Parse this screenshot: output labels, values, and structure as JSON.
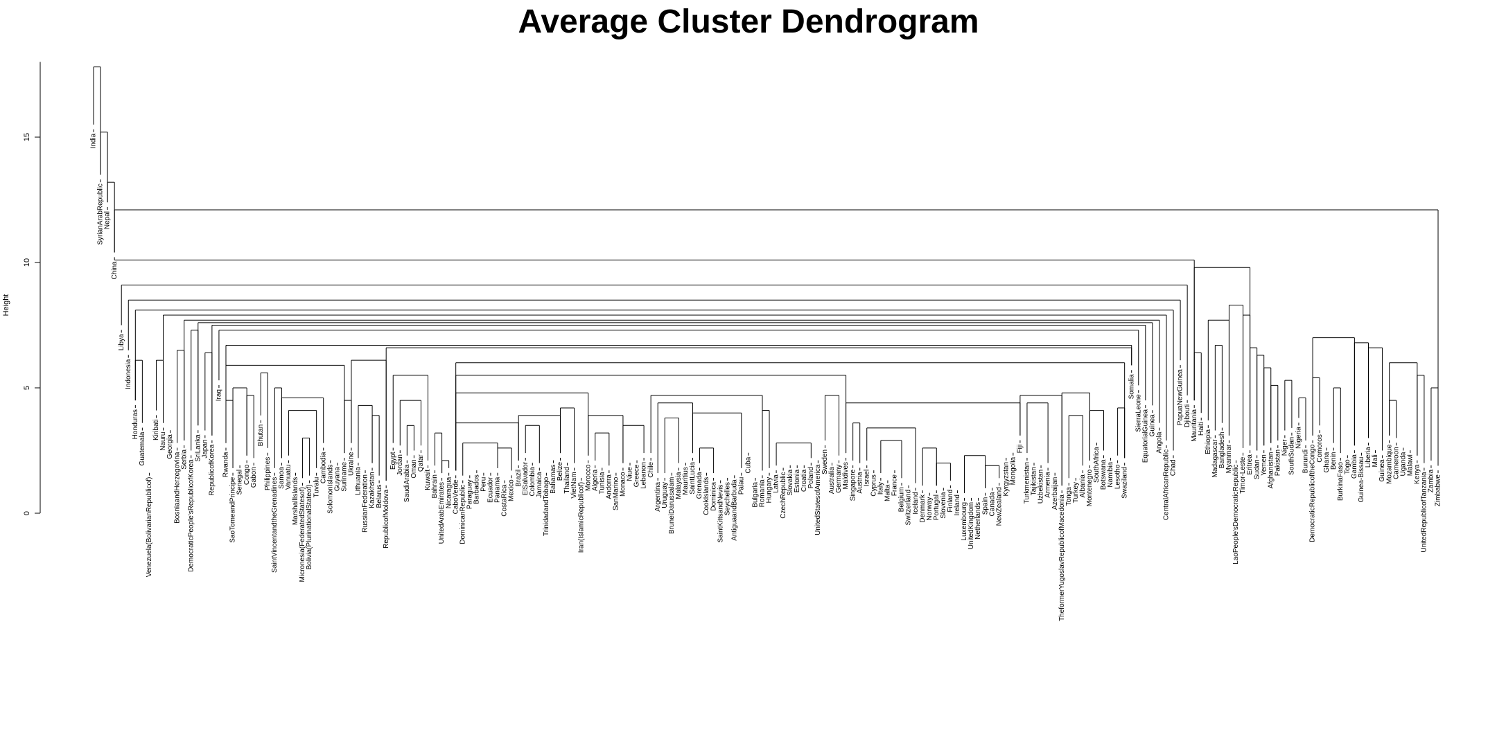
{
  "chart_data": {
    "type": "dendrogram",
    "title": "Average Cluster Dendrogram",
    "ylabel": "Height",
    "ylim": [
      0,
      18
    ],
    "yticks": [
      "0",
      "5",
      "10",
      "15"
    ],
    "leaves": [
      {
        "name": "India",
        "h": 15.2
      },
      {
        "name": "SyrianArabRepublic",
        "h": 13.2
      },
      {
        "name": "Nepal",
        "h": 12.1
      },
      {
        "name": "China",
        "h": 10.1
      },
      {
        "name": "Libya",
        "h": 7.2
      },
      {
        "name": "Indonesia",
        "h": 6.2
      },
      {
        "name": "Honduras",
        "h": 4.2
      },
      {
        "name": "Guatemala",
        "h": 3.3
      },
      {
        "name": "Venezuela(BolivarianRepublicof)",
        "h": 1.5
      },
      {
        "name": "Kiribati",
        "h": 3.8
      },
      {
        "name": "Nauru",
        "h": 3.3
      },
      {
        "name": "Georgia",
        "h": 3.2
      },
      {
        "name": "BosniaandHerzegovina",
        "h": 2.5
      },
      {
        "name": "Serbia",
        "h": 2.6
      },
      {
        "name": "DemocraticPeople'sRepublicofKorea",
        "h": 2.2
      },
      {
        "name": "SriLanka",
        "h": 3.2
      },
      {
        "name": "Japan",
        "h": 3.0
      },
      {
        "name": "RepublicofKorea",
        "h": 2.8
      },
      {
        "name": "Iraq",
        "h": 5.0
      },
      {
        "name": "Rwanda",
        "h": 2.5
      },
      {
        "name": "SaoTomeandPrincipe",
        "h": 1.5
      },
      {
        "name": "Senegal",
        "h": 1.8
      },
      {
        "name": "Congo",
        "h": 2.0
      },
      {
        "name": "Gabon",
        "h": 1.9
      },
      {
        "name": "Bhutan",
        "h": 3.6
      },
      {
        "name": "Philippines",
        "h": 2.3
      },
      {
        "name": "SaintVincentandtheGrenadines",
        "h": 1.5
      },
      {
        "name": "Samoa",
        "h": 1.9
      },
      {
        "name": "Vanuatu",
        "h": 2.0
      },
      {
        "name": "MarshallIslands",
        "h": 1.5
      },
      {
        "name": "Micronesia(FederatedStatesof)",
        "h": 1.1
      },
      {
        "name": "Bolivia(PlurinationalStateof)",
        "h": 1.2
      },
      {
        "name": "Tuvalu",
        "h": 1.5
      },
      {
        "name": "Cambodia",
        "h": 2.5
      },
      {
        "name": "SolomonIslands",
        "h": 2.0
      },
      {
        "name": "Guyana",
        "h": 1.9
      },
      {
        "name": "Suriname",
        "h": 2.1
      },
      {
        "name": "Ukraine",
        "h": 2.5
      },
      {
        "name": "Lithuania",
        "h": 1.9
      },
      {
        "name": "RussianFederation",
        "h": 1.6
      },
      {
        "name": "Kazakhstan",
        "h": 1.7
      },
      {
        "name": "Belarus",
        "h": 1.2
      },
      {
        "name": "RepublicofMoldova",
        "h": 1.0
      },
      {
        "name": "Egypt",
        "h": 2.5
      },
      {
        "name": "Jordan",
        "h": 2.4
      },
      {
        "name": "SaudiArabia",
        "h": 2.0
      },
      {
        "name": "Oman",
        "h": 2.2
      },
      {
        "name": "Qatar",
        "h": 2.4
      },
      {
        "name": "Kuwait",
        "h": 1.8
      },
      {
        "name": "Bahrain",
        "h": 1.6
      },
      {
        "name": "UnitedArabEmirates",
        "h": 1.3
      },
      {
        "name": "Nicaragua",
        "h": 1.5
      },
      {
        "name": "CaboVerde",
        "h": 1.4
      },
      {
        "name": "DominicanRepublic",
        "h": 1.2
      },
      {
        "name": "Paraguay",
        "h": 1.4
      },
      {
        "name": "Barbados",
        "h": 1.6
      },
      {
        "name": "Peru",
        "h": 1.5
      },
      {
        "name": "Ecuador",
        "h": 1.5
      },
      {
        "name": "Panama",
        "h": 1.5
      },
      {
        "name": "CostaRica",
        "h": 1.2
      },
      {
        "name": "Mexico",
        "h": 1.4
      },
      {
        "name": "Brazil",
        "h": 1.8
      },
      {
        "name": "ElSalvador",
        "h": 2.1
      },
      {
        "name": "Colombia",
        "h": 1.9
      },
      {
        "name": "Jamaica",
        "h": 1.7
      },
      {
        "name": "TrinidadandTobago",
        "h": 1.5
      },
      {
        "name": "Bahamas",
        "h": 2.0
      },
      {
        "name": "Belize",
        "h": 2.1
      },
      {
        "name": "Thailand",
        "h": 1.9
      },
      {
        "name": "VietNam",
        "h": 1.7
      },
      {
        "name": "Iran(IslamicRepublicof)",
        "h": 1.3
      },
      {
        "name": "Morocco",
        "h": 2.0
      },
      {
        "name": "Algeria",
        "h": 1.8
      },
      {
        "name": "Tunisia",
        "h": 1.7
      },
      {
        "name": "Andorra",
        "h": 1.6
      },
      {
        "name": "SanMarino",
        "h": 1.5
      },
      {
        "name": "Monaco",
        "h": 1.7
      },
      {
        "name": "Niue",
        "h": 1.9
      },
      {
        "name": "Greece",
        "h": 2.0
      },
      {
        "name": "Lebanon",
        "h": 2.1
      },
      {
        "name": "Chile",
        "h": 2.1
      },
      {
        "name": "Argentina",
        "h": 1.3
      },
      {
        "name": "Uruguay",
        "h": 1.3
      },
      {
        "name": "BruneiDarussalam",
        "h": 1.5
      },
      {
        "name": "Malaysia",
        "h": 1.7
      },
      {
        "name": "Mauritius",
        "h": 1.9
      },
      {
        "name": "SaintLucia",
        "h": 2.1
      },
      {
        "name": "Grenada",
        "h": 1.7
      },
      {
        "name": "CookIslands",
        "h": 1.5
      },
      {
        "name": "Dominica",
        "h": 1.3
      },
      {
        "name": "SaintKittsandNevis",
        "h": 1.2
      },
      {
        "name": "Seychelles",
        "h": 1.3
      },
      {
        "name": "AntiguaandBarbuda",
        "h": 1.4
      },
      {
        "name": "Palau",
        "h": 1.5
      },
      {
        "name": "Cuba",
        "h": 2.3
      },
      {
        "name": "Bulgaria",
        "h": 1.3
      },
      {
        "name": "Romania",
        "h": 1.4
      },
      {
        "name": "Hungary",
        "h": 1.5
      },
      {
        "name": "Latvia",
        "h": 1.6
      },
      {
        "name": "CzechRepublic",
        "h": 1.7
      },
      {
        "name": "Slovakia",
        "h": 1.8
      },
      {
        "name": "Estonia",
        "h": 1.8
      },
      {
        "name": "Croatia",
        "h": 1.8
      },
      {
        "name": "Poland",
        "h": 1.9
      },
      {
        "name": "UnitedStatesofAmerica",
        "h": 2.0
      },
      {
        "name": "Sweden",
        "h": 2.6
      },
      {
        "name": "Australia",
        "h": 1.9
      },
      {
        "name": "Germany",
        "h": 2.0
      },
      {
        "name": "Maldives",
        "h": 2.1
      },
      {
        "name": "Singapore",
        "h": 1.8
      },
      {
        "name": "Austria",
        "h": 1.7
      },
      {
        "name": "Israel",
        "h": 1.8
      },
      {
        "name": "Cyprus",
        "h": 1.6
      },
      {
        "name": "Italy",
        "h": 1.3
      },
      {
        "name": "Malta",
        "h": 1.2
      },
      {
        "name": "France",
        "h": 1.6
      },
      {
        "name": "Belgium",
        "h": 1.1
      },
      {
        "name": "Switzerland",
        "h": 1.0
      },
      {
        "name": "Iceland",
        "h": 0.9
      },
      {
        "name": "Denmark",
        "h": 0.8
      },
      {
        "name": "Norway",
        "h": 0.7
      },
      {
        "name": "Portugal",
        "h": 0.8
      },
      {
        "name": "Slovenia",
        "h": 0.9
      },
      {
        "name": "Finland",
        "h": 1.0
      },
      {
        "name": "Ireland",
        "h": 0.8
      },
      {
        "name": "Luxembourg",
        "h": 0.5
      },
      {
        "name": "UnitedKingdom",
        "h": 0.5
      },
      {
        "name": "Netherlands",
        "h": 0.5
      },
      {
        "name": "Spain",
        "h": 0.7
      },
      {
        "name": "Canada",
        "h": 0.9
      },
      {
        "name": "NewZealand",
        "h": 1.1
      },
      {
        "name": "Kyrgyzstan",
        "h": 2.1
      },
      {
        "name": "Mongolia",
        "h": 2.3
      },
      {
        "name": "Fiji",
        "h": 2.8
      },
      {
        "name": "Turkmenistan",
        "h": 2.1
      },
      {
        "name": "Tajikistan",
        "h": 1.9
      },
      {
        "name": "Uzbekistan",
        "h": 1.8
      },
      {
        "name": "Armenia",
        "h": 1.7
      },
      {
        "name": "Azerbaijan",
        "h": 1.5
      },
      {
        "name": "TheformerYugoslavRepublicofMacedonia",
        "h": 0.8
      },
      {
        "name": "Tonga",
        "h": 1.1
      },
      {
        "name": "Turkey",
        "h": 1.3
      },
      {
        "name": "Albania",
        "h": 1.6
      },
      {
        "name": "Montenegro",
        "h": 1.8
      },
      {
        "name": "SouthAfrica",
        "h": 2.7
      },
      {
        "name": "Botswana",
        "h": 2.2
      },
      {
        "name": "Namibia",
        "h": 2.1
      },
      {
        "name": "Lesotho",
        "h": 2.0
      },
      {
        "name": "Swaziland",
        "h": 1.9
      },
      {
        "name": "Somalia",
        "h": 5.6
      },
      {
        "name": "SierraLeone",
        "h": 4.8
      },
      {
        "name": "EquatorialGuinea",
        "h": 4.2
      },
      {
        "name": "Guinea",
        "h": 4.0
      },
      {
        "name": "Angola",
        "h": 3.3
      },
      {
        "name": "CentralAfricanRepublic",
        "h": 2.6
      },
      {
        "name": "Chad",
        "h": 2.2
      },
      {
        "name": "PapuaNewGuinea",
        "h": 5.8
      },
      {
        "name": "Djibouti",
        "h": 4.4
      },
      {
        "name": "Mauritania",
        "h": 4.2
      },
      {
        "name": "Haiti",
        "h": 3.7
      },
      {
        "name": "Ethiopia",
        "h": 3.4
      },
      {
        "name": "Madagascar",
        "h": 3.0
      },
      {
        "name": "Bangladesh",
        "h": 3.3
      },
      {
        "name": "Myanmar",
        "h": 2.8
      },
      {
        "name": "LaoPeople'sDemocraticRepublic",
        "h": 2.0
      },
      {
        "name": "Timor-Leste",
        "h": 2.3
      },
      {
        "name": "Eritrea",
        "h": 2.4
      },
      {
        "name": "Sudan",
        "h": 2.2
      },
      {
        "name": "Yemen",
        "h": 2.4
      },
      {
        "name": "Afghanistan",
        "h": 2.5
      },
      {
        "name": "Pakistan",
        "h": 2.6
      },
      {
        "name": "Niger",
        "h": 3.0
      },
      {
        "name": "SouthSudan",
        "h": 3.1
      },
      {
        "name": "Nigeria",
        "h": 3.5
      },
      {
        "name": "Burundi",
        "h": 2.6
      },
      {
        "name": "DemocraticRepublicoftheCongo",
        "h": 2.8
      },
      {
        "name": "Comoros",
        "h": 3.2
      },
      {
        "name": "Ghana",
        "h": 2.5
      },
      {
        "name": "Benin",
        "h": 2.5
      },
      {
        "name": "BurkinaFaso",
        "h": 2.1
      },
      {
        "name": "Togo",
        "h": 2.2
      },
      {
        "name": "Gambia",
        "h": 2.4
      },
      {
        "name": "Guinea-Bissau",
        "h": 2.3
      },
      {
        "name": "Liberia",
        "h": 2.7
      },
      {
        "name": "Mali",
        "h": 2.4
      },
      {
        "name": "Guinea",
        "h": 2.2
      },
      {
        "name": "Mozambique",
        "h": 2.8
      },
      {
        "name": "Cameroon",
        "h": 2.7
      },
      {
        "name": "Uganda",
        "h": 2.5
      },
      {
        "name": "Malawi",
        "h": 2.4
      },
      {
        "name": "Kenya",
        "h": 2.0
      },
      {
        "name": "UnitedRepublicofTanzania",
        "h": 1.7
      },
      {
        "name": "Zambia",
        "h": 1.8
      },
      {
        "name": "Zimbabwe",
        "h": 1.6
      }
    ],
    "merges": [
      [
        0,
        1,
        17.8
      ],
      [
        1,
        2,
        15.2
      ],
      [
        2,
        3,
        13.2
      ],
      [
        3,
        199,
        12.1
      ],
      [
        3,
        158,
        10.1
      ],
      [
        4,
        157,
        9.1
      ],
      [
        5,
        156,
        8.5
      ],
      [
        6,
        7,
        6.1
      ],
      [
        6,
        155,
        8.1
      ],
      [
        9,
        10,
        6.1
      ],
      [
        10,
        154,
        7.9
      ],
      [
        12,
        13,
        6.5
      ],
      [
        13,
        153,
        7.7
      ],
      [
        14,
        15,
        7.3
      ],
      [
        15,
        152,
        7.6
      ],
      [
        16,
        17,
        6.4
      ],
      [
        17,
        151,
        7.5
      ],
      [
        18,
        150,
        7.3
      ],
      [
        19,
        149,
        6.7
      ],
      [
        19,
        36,
        5.9
      ],
      [
        19,
        20,
        4.5
      ],
      [
        20,
        22,
        5.0
      ],
      [
        22,
        23,
        4.7
      ],
      [
        24,
        25,
        5.6
      ],
      [
        26,
        27,
        5.0
      ],
      [
        27,
        33,
        4.6
      ],
      [
        28,
        32,
        4.1
      ],
      [
        30,
        31,
        3.0
      ],
      [
        36,
        37,
        4.5
      ],
      [
        37,
        42,
        6.1
      ],
      [
        38,
        40,
        4.3
      ],
      [
        40,
        41,
        3.9
      ],
      [
        42,
        149,
        6.6
      ],
      [
        43,
        48,
        5.5
      ],
      [
        44,
        47,
        4.5
      ],
      [
        45,
        46,
        3.5
      ],
      [
        49,
        50,
        3.2
      ],
      [
        50,
        51,
        2.1
      ],
      [
        52,
        148,
        6.0
      ],
      [
        52,
        108,
        5.5
      ],
      [
        52,
        71,
        4.8
      ],
      [
        52,
        61,
        3.6
      ],
      [
        53,
        58,
        2.8
      ],
      [
        58,
        60,
        2.6
      ],
      [
        61,
        67,
        3.9
      ],
      [
        62,
        64,
        3.5
      ],
      [
        67,
        69,
        4.2
      ],
      [
        71,
        76,
        3.9
      ],
      [
        72,
        74,
        3.2
      ],
      [
        76,
        79,
        3.5
      ],
      [
        80,
        96,
        4.7
      ],
      [
        81,
        86,
        4.4
      ],
      [
        82,
        84,
        3.8
      ],
      [
        86,
        93,
        4.0
      ],
      [
        87,
        89,
        2.6
      ],
      [
        96,
        97,
        4.1
      ],
      [
        98,
        103,
        2.8
      ],
      [
        105,
        107,
        4.7
      ],
      [
        108,
        133,
        4.4
      ],
      [
        109,
        110,
        3.6
      ],
      [
        111,
        118,
        3.4
      ],
      [
        113,
        116,
        2.9
      ],
      [
        119,
        121,
        2.6
      ],
      [
        121,
        123,
        2.0
      ],
      [
        125,
        128,
        2.3
      ],
      [
        128,
        130,
        1.9
      ],
      [
        133,
        139,
        4.7
      ],
      [
        134,
        137,
        4.4
      ],
      [
        139,
        143,
        4.8
      ],
      [
        140,
        142,
        3.9
      ],
      [
        143,
        145,
        4.1
      ],
      [
        147,
        148,
        4.2
      ],
      [
        158,
        166,
        9.8
      ],
      [
        158,
        159,
        6.4
      ],
      [
        160,
        163,
        7.7
      ],
      [
        161,
        162,
        6.7
      ],
      [
        163,
        165,
        8.3
      ],
      [
        165,
        166,
        7.9
      ],
      [
        166,
        167,
        6.6
      ],
      [
        167,
        168,
        6.3
      ],
      [
        168,
        169,
        5.8
      ],
      [
        169,
        170,
        5.1
      ],
      [
        171,
        172,
        5.3
      ],
      [
        173,
        174,
        4.6
      ],
      [
        175,
        176,
        5.4
      ],
      [
        175,
        181,
        7.0
      ],
      [
        178,
        179,
        5.0
      ],
      [
        181,
        183,
        6.8
      ],
      [
        183,
        185,
        6.6
      ],
      [
        186,
        187,
        4.5
      ],
      [
        186,
        190,
        6.0
      ],
      [
        190,
        191,
        5.5
      ],
      [
        192,
        193,
        5.0
      ],
      [
        194,
        195,
        4.3
      ]
    ]
  }
}
